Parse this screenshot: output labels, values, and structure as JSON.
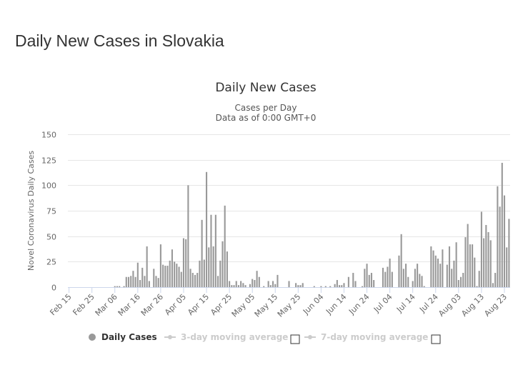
{
  "page": {
    "title": "Daily New Cases in Slovakia"
  },
  "chart_data": {
    "type": "bar",
    "title": "Daily New Cases",
    "subtitle_lines": [
      "Cases per Day",
      "Data as of 0:00 GMT+0"
    ],
    "ylabel": "Novel Coronavirus Daily Cases",
    "xlabel": "",
    "ylim": [
      0,
      150
    ],
    "yticks": [
      0,
      25,
      50,
      75,
      100,
      125,
      150
    ],
    "grid": true,
    "x_start_label": "Feb 15",
    "xtick_labels": [
      "Feb 15",
      "Feb 25",
      "Mar 06",
      "Mar 16",
      "Mar 26",
      "Apr 05",
      "Apr 15",
      "Apr 25",
      "May 05",
      "May 15",
      "May 25",
      "Jun 04",
      "Jun 14",
      "Jun 24",
      "Jul 04",
      "Jul 14",
      "Jul 24",
      "Aug 03",
      "Aug 13",
      "Aug 23"
    ],
    "bar_color": "#999999",
    "series": [
      {
        "name": "Daily Cases",
        "values": [
          0,
          0,
          0,
          0,
          0,
          0,
          0,
          0,
          0,
          0,
          0,
          0,
          0,
          0,
          0,
          0,
          0,
          0,
          0,
          0,
          1,
          1,
          1,
          0,
          1,
          10,
          10,
          11,
          16,
          10,
          24,
          7,
          19,
          11,
          40,
          6,
          0,
          18,
          11,
          9,
          42,
          22,
          21,
          21,
          26,
          37,
          25,
          23,
          20,
          15,
          48,
          47,
          100,
          18,
          14,
          12,
          14,
          26,
          66,
          27,
          113,
          39,
          71,
          40,
          71,
          11,
          26,
          45,
          80,
          35,
          6,
          2,
          2,
          6,
          2,
          6,
          4,
          2,
          0,
          3,
          8,
          7,
          16,
          10,
          0,
          1,
          0,
          6,
          2,
          6,
          3,
          12,
          0,
          0,
          0,
          0,
          6,
          0,
          0,
          4,
          2,
          2,
          4,
          0,
          0,
          0,
          0,
          1,
          0,
          0,
          1,
          0,
          1,
          0,
          1,
          0,
          3,
          7,
          2,
          2,
          4,
          0,
          10,
          0,
          14,
          6,
          0,
          0,
          1,
          18,
          23,
          12,
          14,
          7,
          0,
          0,
          0,
          19,
          15,
          20,
          28,
          15,
          0,
          0,
          31,
          52,
          18,
          23,
          10,
          0,
          6,
          18,
          23,
          13,
          11,
          1,
          0,
          0,
          40,
          36,
          31,
          28,
          23,
          37,
          0,
          22,
          40,
          18,
          26,
          44,
          7,
          10,
          14,
          49,
          62,
          42,
          42,
          29,
          1,
          16,
          74,
          48,
          61,
          54,
          46,
          4,
          14,
          99,
          79,
          122,
          90,
          39,
          67
        ]
      }
    ],
    "legend": [
      {
        "name": "Daily Cases",
        "color": "#999999",
        "enabled": true
      },
      {
        "name": "3-day moving average",
        "color": "#cccccc",
        "enabled": false
      },
      {
        "name": "7-day moving average",
        "color": "#cccccc",
        "enabled": false
      }
    ]
  }
}
